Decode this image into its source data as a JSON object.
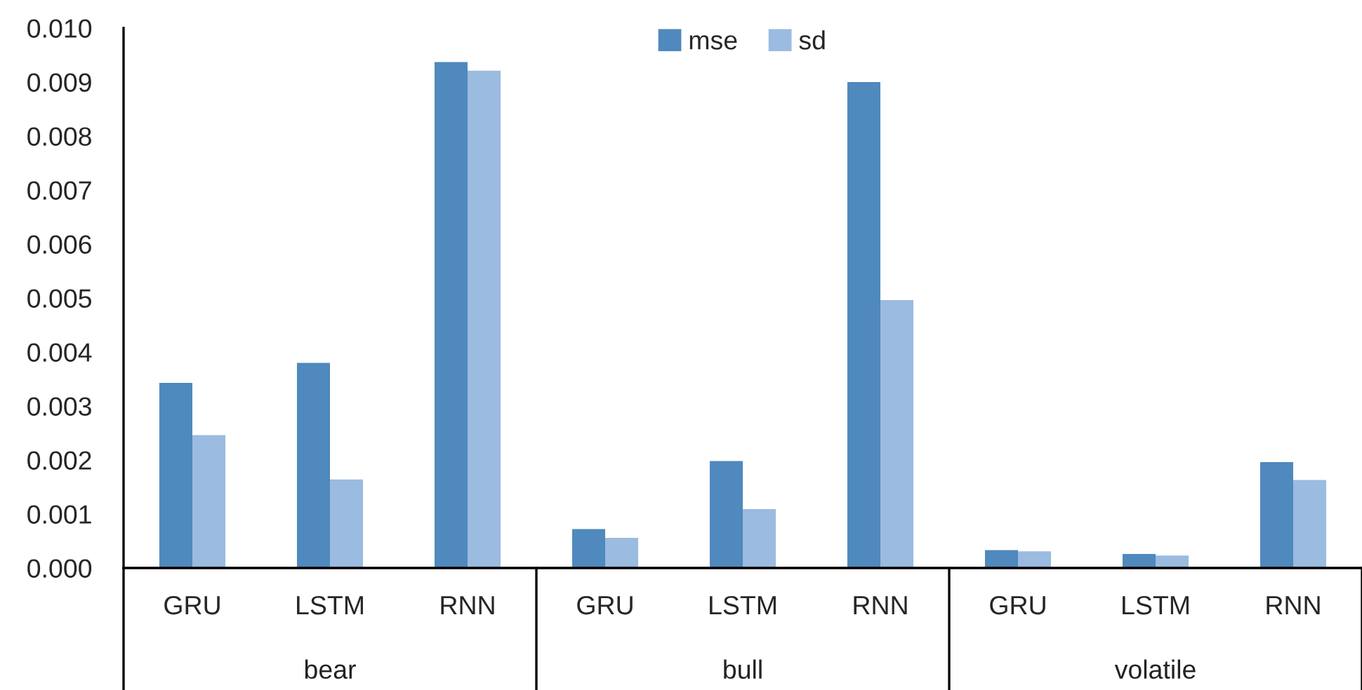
{
  "chart_data": {
    "type": "bar",
    "categories": [
      "GRU",
      "LSTM",
      "RNN",
      "GRU",
      "LSTM",
      "RNN",
      "GRU",
      "LSTM",
      "RNN"
    ],
    "series": [
      {
        "name": "mse",
        "color": "#4f89bd",
        "values": [
          0.00343,
          0.0038,
          0.00937,
          0.00072,
          0.00198,
          0.009,
          0.00033,
          0.00026,
          0.00196
        ]
      },
      {
        "name": "sd",
        "color": "#9bbbe0",
        "values": [
          0.00246,
          0.00164,
          0.00921,
          0.00056,
          0.00109,
          0.00496,
          0.00031,
          0.00023,
          0.00163
        ]
      }
    ],
    "annotations": [
      "bear",
      "bull",
      "volatile"
    ],
    "ylim": [
      0,
      0.01
    ],
    "yticks": [
      {
        "value": 0,
        "label": "0.000"
      },
      {
        "value": 0.001,
        "label": "0.001"
      },
      {
        "value": 0.002,
        "label": "0.002"
      },
      {
        "value": 0.003,
        "label": "0.003"
      },
      {
        "value": 0.004,
        "label": "0.004"
      },
      {
        "value": 0.005,
        "label": "0.005"
      },
      {
        "value": 0.006,
        "label": "0.006"
      },
      {
        "value": 0.007,
        "label": "0.007"
      },
      {
        "value": 0.008,
        "label": "0.008"
      },
      {
        "value": 0.009,
        "label": "0.009"
      },
      {
        "value": 0.01,
        "label": "0.010"
      }
    ],
    "grid": false,
    "legend": "top"
  }
}
